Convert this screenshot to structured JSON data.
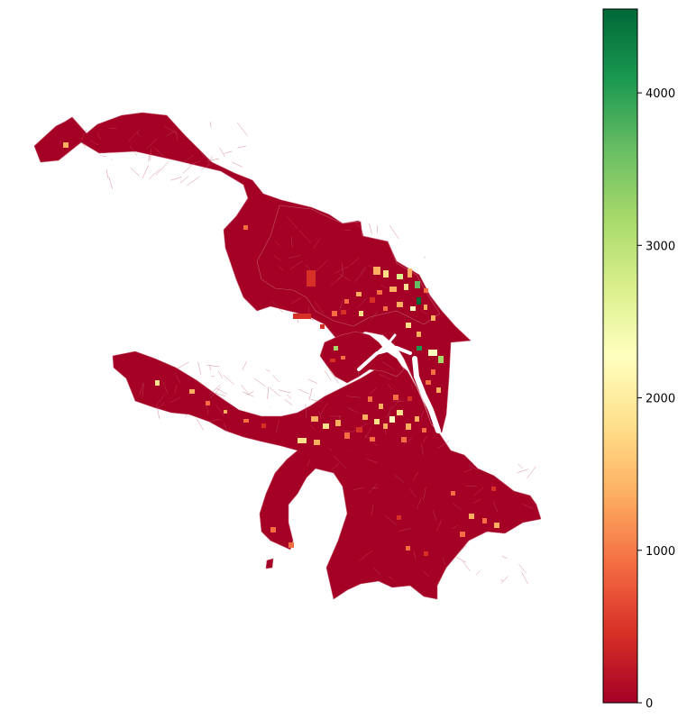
{
  "map": {
    "base_color": "#a50026",
    "boundary_color": "#c2586a",
    "district_colors": [
      "#d73027",
      "#f46d43",
      "#fdae61",
      "#fee08b",
      "#ffffbf",
      "#d9ef8b",
      "#a6d96a",
      "#66bd63",
      "#1a9850",
      "#006837"
    ]
  },
  "colorbar": {
    "colormap": "RdYlGn",
    "range": [
      0,
      4550
    ],
    "ticks": [
      0,
      1000,
      2000,
      3000,
      4000
    ],
    "tick_labels": [
      "0",
      "1000",
      "2000",
      "3000",
      "4000"
    ],
    "stops": [
      "#a50026",
      "#d73027",
      "#f46d43",
      "#fdae61",
      "#fee08b",
      "#ffffbf",
      "#d9ef8b",
      "#a6d96a",
      "#66bd63",
      "#1a9850",
      "#006837"
    ]
  }
}
